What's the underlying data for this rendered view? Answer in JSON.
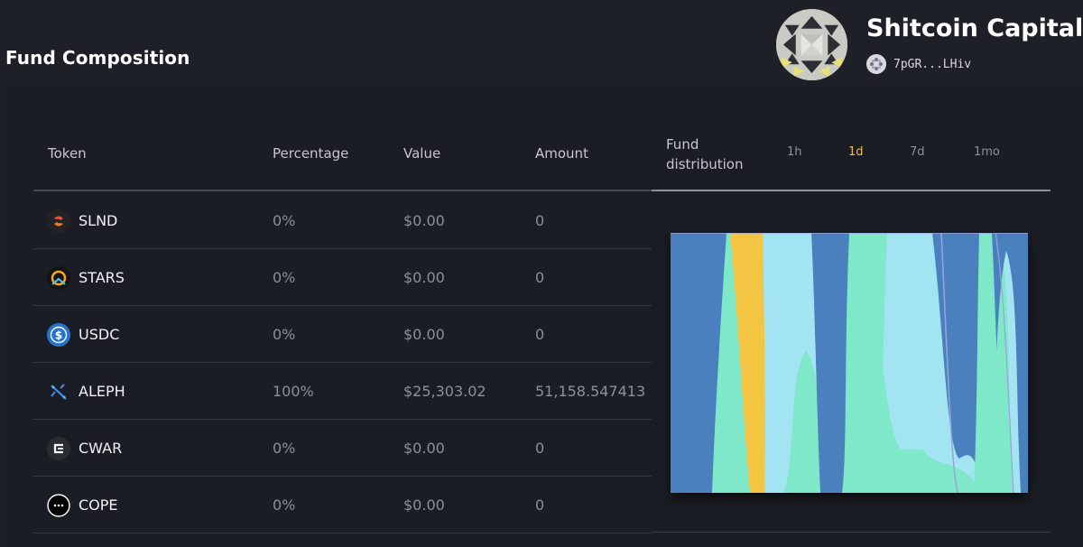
{
  "page": {
    "section_title": "Fund Composition"
  },
  "fund": {
    "name": "Shitcoin Capital",
    "wallet_address": "7pGR...LHiv",
    "avatar_icon": "fund-geometric-logo"
  },
  "table": {
    "columns": [
      "Token",
      "Percentage",
      "Value",
      "Amount"
    ],
    "rows": [
      {
        "token": "SLND",
        "percentage": "0%",
        "value": "$0.00",
        "amount": "0",
        "icon": "slnd-icon",
        "icon_color": "#e8523a"
      },
      {
        "token": "STARS",
        "percentage": "0%",
        "value": "$0.00",
        "amount": "0",
        "icon": "stars-icon",
        "icon_color": "#f5a623"
      },
      {
        "token": "USDC",
        "percentage": "0%",
        "value": "$0.00",
        "amount": "0",
        "icon": "usdc-icon",
        "icon_color": "#2775ca"
      },
      {
        "token": "ALEPH",
        "percentage": "100%",
        "value": "$25,303.02",
        "amount": "51,158.547413",
        "icon": "aleph-icon",
        "icon_color": "#3d8ef0"
      },
      {
        "token": "CWAR",
        "percentage": "0%",
        "value": "$0.00",
        "amount": "0",
        "icon": "cwar-icon",
        "icon_color": "#ffffff"
      },
      {
        "token": "COPE",
        "percentage": "0%",
        "value": "$0.00",
        "amount": "0",
        "icon": "cope-icon",
        "icon_color": "#ffffff"
      }
    ]
  },
  "distribution": {
    "label": "Fund distribution",
    "timeframes": [
      "1h",
      "1d",
      "7d",
      "1mo"
    ],
    "selected_timeframe": "1d",
    "colors": {
      "teal": "#7ee8c9",
      "light_blue": "#a3e4f2",
      "blue": "#4a80bd",
      "yellow": "#f4c542",
      "lavender": "#9aa3d8"
    }
  }
}
